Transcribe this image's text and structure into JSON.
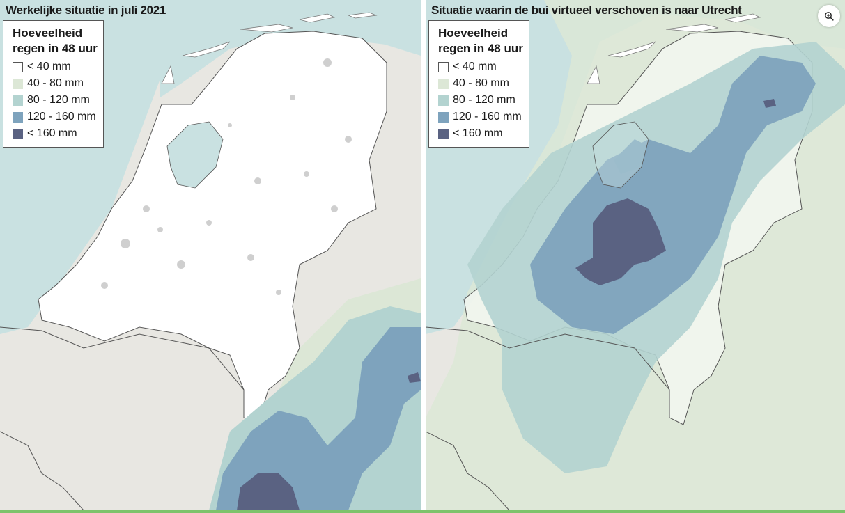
{
  "panels": [
    {
      "title": "Werkelijke situatie in juli 2021",
      "legend": {
        "title_line1": "Hoeveelheid",
        "title_line2": "regen in 48 uur",
        "items": [
          {
            "label": "< 40 mm",
            "color": "#ffffff"
          },
          {
            "label": "40 - 80 mm",
            "color": "#dce7d6"
          },
          {
            "label": "80 - 120 mm",
            "color": "#b3d3d0"
          },
          {
            "label": "120 - 160 mm",
            "color": "#7ea3bd"
          },
          {
            "label": "< 160 mm",
            "color": "#5a6282"
          }
        ]
      }
    },
    {
      "title": "Situatie waarin de bui virtueel verschoven is naar Utrecht",
      "legend": {
        "title_line1": "Hoeveelheid",
        "title_line2": "regen in 48 uur",
        "items": [
          {
            "label": "< 40 mm",
            "color": "#ffffff"
          },
          {
            "label": "40 - 80 mm",
            "color": "#dce7d6"
          },
          {
            "label": "80 - 120 mm",
            "color": "#b3d3d0"
          },
          {
            "label": "120 - 160 mm",
            "color": "#7ea3bd"
          },
          {
            "label": "< 160 mm",
            "color": "#5a6282"
          }
        ]
      }
    }
  ],
  "colors": {
    "sea": "#c9e1e1",
    "land_outside": "#e8e7e2",
    "country": "#ffffff",
    "border": "#333333",
    "urban": "#cfcfcf",
    "water": "#9fcfd5"
  },
  "icons": {
    "zoom": "zoom-in-icon"
  }
}
